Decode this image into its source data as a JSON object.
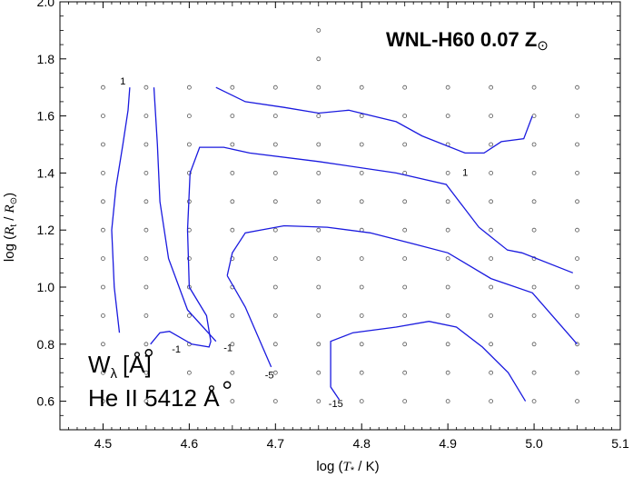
{
  "chart_data": {
    "type": "line",
    "title": "WNL-H60 0.07 Z",
    "title_symbol": "⊙",
    "xlabel_prefix": "log (",
    "xlabel_var": "T",
    "xlabel_sub": "*",
    "xlabel_suffix": " / K)",
    "ylabel_prefix": "log (",
    "ylabel_var": "R",
    "ylabel_sub": "t",
    "ylabel_mid": " / ",
    "ylabel_var2": "R",
    "ylabel_sub2": "⊙",
    "ylabel_suffix": ")",
    "panel_label_1": "W",
    "panel_label_1_sub": "λ",
    "panel_label_1_unit": "[Å]",
    "panel_label_2": "He II 5412 Å",
    "xlim": [
      4.45,
      5.1
    ],
    "ylim": [
      0.5,
      2.0
    ],
    "xticks": [
      "4.5",
      "4.6",
      "4.7",
      "4.8",
      "4.9",
      "5.0",
      "5.1"
    ],
    "yticks": [
      "0.6",
      "0.8",
      "1.0",
      "1.2",
      "1.4",
      "1.6",
      "1.8",
      "2.0"
    ],
    "line_color": "#1a1adf",
    "grid_models": {
      "columns": [
        4.5,
        4.55,
        4.6,
        4.65,
        4.7,
        4.75,
        4.8,
        4.85,
        4.9,
        4.95,
        5.0,
        5.05
      ],
      "y_rows": [
        0.6,
        0.7,
        0.8,
        0.9,
        1.0,
        1.1,
        1.2,
        1.3,
        1.4,
        1.5,
        1.6,
        1.7
      ],
      "extra_points": [
        [
          4.75,
          1.8
        ],
        [
          4.75,
          1.9
        ]
      ]
    },
    "highlight_models": [
      [
        4.553,
        0.77
      ],
      [
        4.644,
        0.657
      ]
    ],
    "contours": [
      {
        "label": "1",
        "points": [
          [
            4.519,
            0.84
          ],
          [
            4.513,
            1.0
          ],
          [
            4.51,
            1.2
          ],
          [
            4.515,
            1.35
          ],
          [
            4.523,
            1.5
          ],
          [
            4.529,
            1.62
          ],
          [
            4.531,
            1.7
          ]
        ],
        "label_pos": [
          4.523,
          1.71
        ]
      },
      {
        "label": "-1",
        "points": [
          [
            4.559,
            1.7
          ],
          [
            4.563,
            1.5
          ],
          [
            4.566,
            1.3
          ],
          [
            4.576,
            1.1
          ],
          [
            4.598,
            0.92
          ],
          [
            4.631,
            0.81
          ]
        ],
        "label_pos": [
          4.585,
          0.77
        ]
      },
      {
        "label": "1",
        "points": [
          [
            4.631,
            1.7
          ],
          [
            4.665,
            1.65
          ],
          [
            4.71,
            1.63
          ],
          [
            4.75,
            1.61
          ],
          [
            4.785,
            1.62
          ],
          [
            4.84,
            1.58
          ],
          [
            4.87,
            1.53
          ],
          [
            4.92,
            1.47
          ],
          [
            4.942,
            1.47
          ],
          [
            4.962,
            1.51
          ],
          [
            4.988,
            1.52
          ],
          [
            4.998,
            1.6
          ]
        ],
        "label_pos": [
          4.92,
          1.39
        ]
      },
      {
        "label": "",
        "points": [
          [
            4.598,
            1.2
          ],
          [
            4.601,
            1.4
          ],
          [
            4.612,
            1.49
          ],
          [
            4.64,
            1.49
          ],
          [
            4.67,
            1.47
          ],
          [
            4.75,
            1.44
          ],
          [
            4.84,
            1.4
          ],
          [
            4.898,
            1.36
          ],
          [
            4.936,
            1.21
          ],
          [
            4.969,
            1.13
          ],
          [
            4.986,
            1.12
          ],
          [
            5.045,
            1.05
          ]
        ],
        "label_pos": [
          0,
          0
        ]
      },
      {
        "label": "-1",
        "points": [
          [
            4.555,
            0.8
          ],
          [
            4.566,
            0.84
          ],
          [
            4.577,
            0.845
          ],
          [
            4.603,
            0.8
          ],
          [
            4.623,
            0.79
          ],
          [
            4.625,
            0.81
          ],
          [
            4.62,
            0.9
          ],
          [
            4.6,
            1.0
          ],
          [
            4.598,
            1.2
          ]
        ],
        "label_pos": [
          4.645,
          0.775
        ]
      },
      {
        "label": "-5",
        "points": [
          [
            4.644,
            1.04
          ],
          [
            4.665,
            0.93
          ],
          [
            4.695,
            0.72
          ]
        ],
        "label_pos": [
          4.693,
          0.68
        ]
      },
      {
        "label": "",
        "points": [
          [
            4.644,
            1.04
          ],
          [
            4.65,
            1.12
          ],
          [
            4.665,
            1.19
          ],
          [
            4.71,
            1.215
          ],
          [
            4.76,
            1.21
          ],
          [
            4.81,
            1.19
          ],
          [
            4.862,
            1.15
          ],
          [
            4.9,
            1.12
          ],
          [
            4.95,
            1.03
          ],
          [
            4.998,
            0.98
          ],
          [
            5.05,
            0.8
          ]
        ],
        "label_pos": [
          0,
          0
        ]
      },
      {
        "label": "-15",
        "points": [
          [
            4.774,
            0.605
          ],
          [
            4.764,
            0.65
          ],
          [
            4.764,
            0.81
          ],
          [
            4.79,
            0.84
          ],
          [
            4.84,
            0.86
          ],
          [
            4.878,
            0.88
          ],
          [
            4.91,
            0.86
          ],
          [
            4.94,
            0.79
          ],
          [
            4.97,
            0.7
          ],
          [
            4.99,
            0.6
          ]
        ],
        "label_pos": [
          4.77,
          0.58
        ]
      }
    ]
  }
}
